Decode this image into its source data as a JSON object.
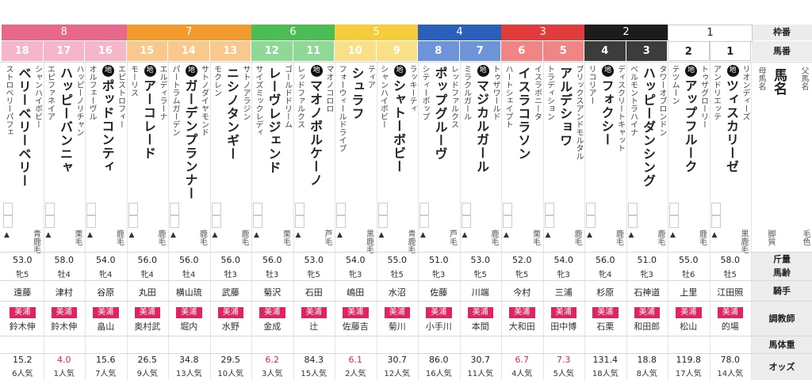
{
  "labels": {
    "gate": "枠番",
    "num": "馬番",
    "father": "父馬名",
    "name": "馬名",
    "mother": "母馬名",
    "color": "毛色",
    "weight_and_age": [
      "斤量",
      "馬齢"
    ],
    "jockey": "騎手",
    "trainer": "調教師",
    "bodyweight": "馬体重",
    "odds": "オッズ",
    "shoe": "脚質"
  },
  "gates": [
    {
      "label": "8",
      "color": "#e8688a",
      "count": 3
    },
    {
      "label": "7",
      "color": "#f39a2e",
      "count": 3
    },
    {
      "label": "6",
      "color": "#4cbc54",
      "count": 2
    },
    {
      "label": "5",
      "color": "#f5cd3a",
      "count": 2
    },
    {
      "label": "4",
      "color": "#2b5fbe",
      "count": 2
    },
    {
      "label": "3",
      "color": "#e23b3b",
      "count": 2
    },
    {
      "label": "2",
      "color": "#1c1c1c",
      "count": 2
    },
    {
      "label": "1",
      "color": "#ffffff",
      "count": 2
    }
  ],
  "horses": [
    {
      "num": "18",
      "sire": "シャンハイボビー",
      "name": "ベリーベリーベリー",
      "dam": "ストロベリーパフェ",
      "marked": false,
      "coat": "青鹿毛",
      "weight": "53.0",
      "age": "牝5",
      "jockey": "遠藤",
      "trainer_badge": "美浦",
      "trainer": "鈴木伸",
      "odds": "15.2",
      "odds_hl": false,
      "pop": "6人気"
    },
    {
      "num": "17",
      "sire": "ハッピーノリチャン",
      "name": "ハッピーバンニャ",
      "dam": "エピファネイア",
      "marked": false,
      "coat": "栗毛",
      "weight": "58.0",
      "age": "牡4",
      "jockey": "津村",
      "trainer_badge": "美浦",
      "trainer": "鈴木伸",
      "odds": "4.0",
      "odds_hl": true,
      "pop": "1人気"
    },
    {
      "num": "16",
      "sire": "エピストロフィー",
      "name": "ポッドコンティ",
      "dam": "オルフェーヴル",
      "marked": true,
      "coat": "鹿毛",
      "weight": "54.0",
      "age": "牝4",
      "jockey": "谷原",
      "trainer_badge": "美浦",
      "trainer": "畠山",
      "odds": "15.6",
      "odds_hl": false,
      "pop": "7人気"
    },
    {
      "num": "15",
      "sire": "エルディラーナ",
      "name": "アーコレード",
      "dam": "モーリス",
      "marked": true,
      "coat": "鹿毛",
      "weight": "56.0",
      "age": "牝4",
      "jockey": "丸田",
      "trainer_badge": "美浦",
      "trainer": "奥村武",
      "odds": "26.5",
      "odds_hl": false,
      "pop": "9人気"
    },
    {
      "num": "14",
      "sire": "サトノダイヤモンド",
      "name": "ガーデンプランナー",
      "dam": "パートラムガーデン",
      "marked": true,
      "coat": "鹿毛",
      "weight": "56.0",
      "age": "牡4",
      "jockey": "横山琉",
      "trainer_badge": "美浦",
      "trainer": "堀内",
      "odds": "34.8",
      "odds_hl": false,
      "pop": "13人気"
    },
    {
      "num": "13",
      "sire": "サトノアラジン",
      "name": "ニシノタンギー",
      "dam": "モクレン",
      "marked": false,
      "coat": "鹿毛",
      "weight": "56.0",
      "age": "牡3",
      "jockey": "武藤",
      "trainer_badge": "美浦",
      "trainer": "水野",
      "odds": "29.5",
      "odds_hl": false,
      "pop": "10人気"
    },
    {
      "num": "12",
      "sire": "ゴールドドリーム",
      "name": "レーヴレジェンド",
      "dam": "サイズミックレディ",
      "marked": false,
      "coat": "栗毛",
      "weight": "56.0",
      "age": "牡3",
      "jockey": "菊沢",
      "trainer_badge": "美浦",
      "trainer": "金成",
      "odds": "6.2",
      "odds_hl": true,
      "pop": "3人気"
    },
    {
      "num": "11",
      "sire": "マオノコロロ",
      "name": "マオノボルケーノ",
      "dam": "レッドファルクス",
      "marked": true,
      "coat": "芦毛",
      "weight": "53.0",
      "age": "牝5",
      "jockey": "石田",
      "trainer_badge": "美浦",
      "trainer": "辻",
      "odds": "84.3",
      "odds_hl": false,
      "pop": "15人気"
    },
    {
      "num": "10",
      "sire": "ティア",
      "name": "シュラフ",
      "dam": "フォーウィールドライブ",
      "marked": false,
      "coat": "黒鹿毛",
      "weight": "54.0",
      "age": "牝3",
      "jockey": "嶋田",
      "trainer_badge": "美浦",
      "trainer": "佐藤吉",
      "odds": "6.1",
      "odds_hl": true,
      "pop": "2人気"
    },
    {
      "num": "9",
      "sire": "ラッキーティ",
      "name": "シャトーボビー",
      "dam": "シャンハイボビー",
      "marked": true,
      "coat": "青鹿毛",
      "weight": "55.0",
      "age": "牡5",
      "jockey": "水沼",
      "trainer_badge": "美浦",
      "trainer": "菊川",
      "odds": "30.7",
      "odds_hl": false,
      "pop": "12人気"
    },
    {
      "num": "8",
      "sire": "レッドファルクス",
      "name": "ポップグルーヴ",
      "dam": "シティーポップ",
      "marked": false,
      "coat": "芦毛",
      "weight": "51.0",
      "age": "牝3",
      "jockey": "佐藤",
      "trainer_badge": "美浦",
      "trainer": "小手川",
      "odds": "86.0",
      "odds_hl": false,
      "pop": "16人気"
    },
    {
      "num": "7",
      "sire": "トゥザワールド",
      "name": "マジカルガール",
      "dam": "ミラクルガール",
      "marked": true,
      "coat": "鹿毛",
      "weight": "53.0",
      "age": "牝5",
      "jockey": "川端",
      "trainer_badge": "美浦",
      "trainer": "本間",
      "odds": "30.7",
      "odds_hl": false,
      "pop": "11人気"
    },
    {
      "num": "6",
      "sire": "イスラボニータ",
      "name": "イスラコラソン",
      "dam": "ハートシェイプト",
      "marked": false,
      "coat": "栗毛",
      "weight": "52.0",
      "age": "牝5",
      "jockey": "今村",
      "trainer_badge": "美浦",
      "trainer": "大和田",
      "odds": "6.7",
      "odds_hl": true,
      "pop": "4人気"
    },
    {
      "num": "5",
      "sire": "ブリックスアンドモルタル",
      "name": "アルデショワ",
      "dam": "トラディション",
      "marked": false,
      "coat": "鹿毛",
      "weight": "54.0",
      "age": "牝3",
      "jockey": "三浦",
      "trainer_badge": "美浦",
      "trainer": "田中博",
      "odds": "7.3",
      "odds_hl": true,
      "pop": "5人気"
    },
    {
      "num": "4",
      "sire": "ディスクリートキャット",
      "name": "フォクシー",
      "dam": "リコリアー",
      "marked": true,
      "coat": "鹿毛",
      "weight": "56.0",
      "age": "牝4",
      "jockey": "杉原",
      "trainer_badge": "美浦",
      "trainer": "石栗",
      "odds": "131.4",
      "odds_hl": false,
      "pop": "18人気"
    },
    {
      "num": "3",
      "sire": "タワーオブロンドン",
      "name": "ハッピーダンシング",
      "dam": "ベルモントラハイナ",
      "marked": false,
      "coat": "鹿毛",
      "weight": "51.0",
      "age": "牝3",
      "jockey": "石神道",
      "trainer_badge": "美浦",
      "trainer": "和田郎",
      "odds": "18.8",
      "odds_hl": false,
      "pop": "8人気"
    },
    {
      "num": "2",
      "sire": "トゥザグローリー",
      "name": "アップフルーク",
      "dam": "テツムーン",
      "marked": true,
      "coat": "鹿毛",
      "weight": "55.0",
      "age": "牡6",
      "jockey": "上里",
      "trainer_badge": "美浦",
      "trainer": "松山",
      "odds": "119.8",
      "odds_hl": false,
      "pop": "17人気"
    },
    {
      "num": "1",
      "sire": "リオンディーズ",
      "name": "ツィスカリーゼ",
      "dam": "アンドリエッテ",
      "marked": true,
      "coat": "黒鹿毛",
      "weight": "58.0",
      "age": "牡5",
      "jockey": "江田照",
      "trainer_badge": "美浦",
      "trainer": "的場",
      "odds": "78.0",
      "odds_hl": false,
      "pop": "14人気"
    }
  ]
}
